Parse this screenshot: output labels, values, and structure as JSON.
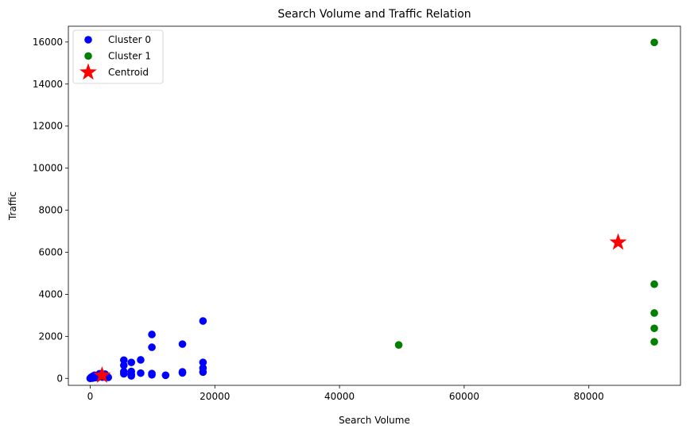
{
  "chart_data": {
    "type": "scatter",
    "title": "Search Volume and Traffic Relation",
    "xlabel": "Search Volume",
    "ylabel": "Traffic",
    "xlim": [
      -3500,
      94700
    ],
    "ylim": [
      -330,
      16750
    ],
    "xticks": [
      0,
      20000,
      40000,
      60000,
      80000
    ],
    "yticks": [
      0,
      2000,
      4000,
      6000,
      8000,
      10000,
      12000,
      14000,
      16000
    ],
    "grid": false,
    "legend_position": "top-left",
    "series": [
      {
        "name": "Cluster 0",
        "color": "#0000ff",
        "marker": "circle",
        "points": [
          [
            0,
            0
          ],
          [
            100,
            30
          ],
          [
            200,
            60
          ],
          [
            300,
            10
          ],
          [
            400,
            100
          ],
          [
            500,
            20
          ],
          [
            700,
            150
          ],
          [
            900,
            40
          ],
          [
            1200,
            90
          ],
          [
            1500,
            220
          ],
          [
            1800,
            140
          ],
          [
            2000,
            60
          ],
          [
            2400,
            200
          ],
          [
            2900,
            50
          ],
          [
            5400,
            870
          ],
          [
            5400,
            620
          ],
          [
            5400,
            320
          ],
          [
            5400,
            220
          ],
          [
            6600,
            760
          ],
          [
            6600,
            330
          ],
          [
            6600,
            200
          ],
          [
            6600,
            120
          ],
          [
            8100,
            880
          ],
          [
            8100,
            250
          ],
          [
            9900,
            2090
          ],
          [
            9900,
            1480
          ],
          [
            9900,
            230
          ],
          [
            9900,
            170
          ],
          [
            12100,
            150
          ],
          [
            14800,
            1630
          ],
          [
            14800,
            310
          ],
          [
            14800,
            260
          ],
          [
            18100,
            2730
          ],
          [
            18100,
            760
          ],
          [
            18100,
            490
          ],
          [
            18100,
            300
          ]
        ]
      },
      {
        "name": "Cluster 1",
        "color": "#008000",
        "marker": "circle",
        "points": [
          [
            49500,
            1590
          ],
          [
            90500,
            15980
          ],
          [
            90500,
            4480
          ],
          [
            90500,
            3110
          ],
          [
            90500,
            2380
          ],
          [
            90500,
            1740
          ]
        ]
      },
      {
        "name": "Centroid",
        "color": "#ff0000",
        "marker": "star",
        "points": [
          [
            1900,
            140
          ],
          [
            84700,
            6470
          ]
        ]
      }
    ]
  }
}
